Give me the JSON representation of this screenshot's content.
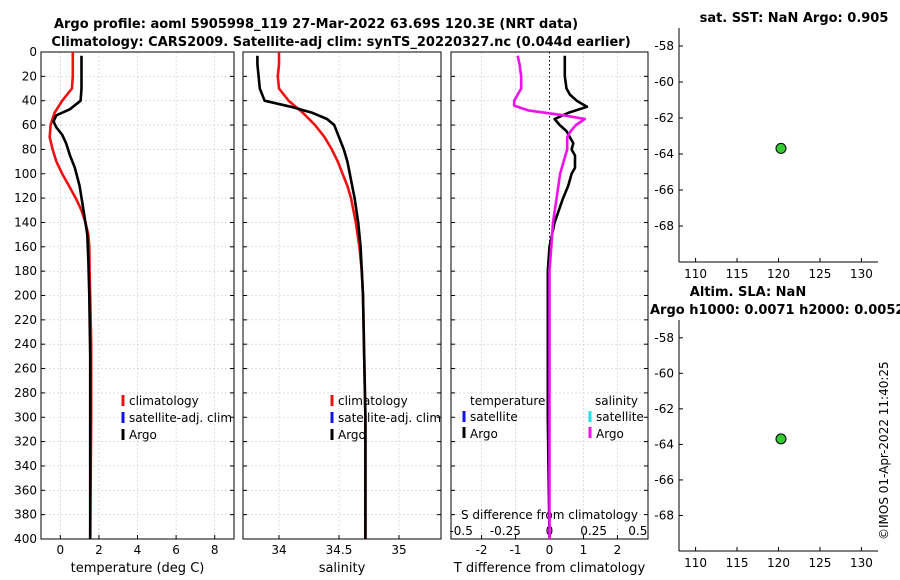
{
  "titles": {
    "line1": "Argo profile: aoml 5905998_119 27-Mar-2022 63.69S 120.3E (NRT data)",
    "line2": "Climatology: CARS2009. Satellite-adj clim: synTS_20220327.nc (0.044d earlier)",
    "sst": "sat. SST: NaN Argo: 0.905",
    "sla1": "Altim. SLA: NaN",
    "sla2": "Argo h1000: 0.0071 h2000: 0.0052"
  },
  "watermark": "©IMOS 01-Apr-2022 11:40:25",
  "colors": {
    "red": "#ee1111",
    "blue": "#1111ee",
    "black": "#000000",
    "magenta": "#ee11ee",
    "cyan": "#22ddee",
    "green": "#33cc33"
  },
  "chart_data": [
    {
      "type": "line",
      "id": "temperature",
      "xlabel": "temperature (deg C)",
      "xlim": [
        -1,
        9
      ],
      "ylim": [
        0,
        400
      ],
      "xticks": [
        0,
        2,
        4,
        6,
        8
      ],
      "yticks": [
        0,
        20,
        40,
        60,
        80,
        100,
        120,
        140,
        160,
        180,
        200,
        220,
        240,
        260,
        280,
        300,
        320,
        340,
        360,
        380,
        400
      ],
      "legend": [
        "climatology",
        "satellite-adj. clim",
        "Argo"
      ],
      "series": [
        {
          "name": "climatology",
          "color": "red",
          "depth": [
            0,
            10,
            20,
            30,
            40,
            50,
            60,
            70,
            80,
            90,
            100,
            110,
            120,
            130,
            140,
            150,
            160,
            180,
            200,
            240,
            300,
            400
          ],
          "values": [
            0.65,
            0.65,
            0.65,
            0.6,
            0.1,
            -0.3,
            -0.5,
            -0.55,
            -0.4,
            -0.2,
            0.1,
            0.45,
            0.8,
            1.1,
            1.3,
            1.45,
            1.5,
            1.52,
            1.55,
            1.6,
            1.6,
            1.55
          ]
        },
        {
          "name": "Argo",
          "color": "black",
          "depth": [
            3,
            10,
            20,
            30,
            40,
            47,
            52,
            57,
            62,
            68,
            75,
            85,
            95,
            110,
            130,
            150,
            170,
            200,
            250,
            300,
            350,
            400
          ],
          "values": [
            1.1,
            1.1,
            1.1,
            1.1,
            1.05,
            0.5,
            -0.2,
            -0.35,
            -0.2,
            0.1,
            0.3,
            0.5,
            0.75,
            1.0,
            1.2,
            1.4,
            1.45,
            1.5,
            1.55,
            1.55,
            1.55,
            1.55
          ]
        }
      ]
    },
    {
      "type": "line",
      "id": "salinity",
      "xlabel": "salinity",
      "xlim": [
        33.7,
        35.35
      ],
      "ylim": [
        0,
        400
      ],
      "xticks": [
        34,
        34.5,
        35
      ],
      "legend": [
        "climatology",
        "satellite-adj. clim",
        "Argo"
      ],
      "series": [
        {
          "name": "climatology",
          "color": "red",
          "depth": [
            0,
            10,
            20,
            30,
            40,
            50,
            60,
            70,
            80,
            90,
            100,
            110,
            120,
            140,
            160,
            180,
            200,
            250,
            300,
            400
          ],
          "values": [
            34.0,
            34.0,
            33.99,
            34.0,
            34.08,
            34.2,
            34.3,
            34.38,
            34.44,
            34.49,
            34.53,
            34.57,
            34.6,
            34.64,
            34.67,
            34.69,
            34.7,
            34.71,
            34.72,
            34.72
          ]
        },
        {
          "name": "Argo",
          "color": "black",
          "depth": [
            3,
            10,
            20,
            30,
            40,
            45,
            50,
            55,
            60,
            70,
            80,
            90,
            100,
            120,
            140,
            160,
            180,
            200,
            250,
            300,
            400
          ],
          "values": [
            33.82,
            33.82,
            33.83,
            33.84,
            33.88,
            34.1,
            34.28,
            34.4,
            34.46,
            34.5,
            34.54,
            34.57,
            34.59,
            34.63,
            34.66,
            34.68,
            34.69,
            34.7,
            34.71,
            34.72,
            34.72
          ]
        }
      ]
    },
    {
      "type": "line",
      "id": "difference",
      "xlabel": "T difference from climatology",
      "xlabel_top": "S difference from climatology",
      "xlim": [
        -2.9,
        2.9
      ],
      "ylim": [
        0,
        400
      ],
      "xticks": [
        -2,
        -1,
        0,
        1,
        2
      ],
      "xtick_labels": [
        "-2",
        "-1",
        "0",
        "1",
        "2"
      ],
      "sticks": [
        -0.5,
        -0.25,
        0,
        0.25,
        0.5
      ],
      "stick_labels": [
        "-0.5",
        "-0.25",
        "0",
        "0.25",
        "0.5"
      ],
      "legend_temperature": {
        "title": "temperature",
        "items": [
          "satellite",
          "Argo"
        ]
      },
      "legend_salinity": {
        "title": "salinity",
        "items": [
          "satellite",
          "Argo"
        ]
      },
      "series": [
        {
          "name": "T Argo - clim",
          "color": "black",
          "depth": [
            3,
            20,
            30,
            35,
            40,
            45,
            50,
            55,
            60,
            65,
            70,
            75,
            80,
            85,
            90,
            95,
            100,
            110,
            120,
            140,
            160,
            180,
            200,
            250,
            300,
            400
          ],
          "values": [
            0.45,
            0.45,
            0.5,
            0.6,
            0.8,
            1.1,
            0.55,
            0.15,
            0.3,
            0.5,
            0.6,
            0.7,
            0.65,
            0.75,
            0.75,
            0.75,
            0.65,
            0.55,
            0.4,
            0.15,
            0.0,
            -0.05,
            -0.05,
            -0.05,
            -0.05,
            0.0
          ]
        },
        {
          "name": "S Argo - clim",
          "color": "magenta",
          "depth": [
            3,
            10,
            20,
            30,
            40,
            44,
            48,
            52,
            55,
            60,
            65,
            70,
            80,
            90,
            100,
            120,
            140,
            160,
            180,
            200,
            300,
            400
          ],
          "values": [
            -0.18,
            -0.17,
            -0.16,
            -0.16,
            -0.2,
            -0.2,
            -0.12,
            0.08,
            0.2,
            0.15,
            0.12,
            0.1,
            0.1,
            0.08,
            0.06,
            0.04,
            0.02,
            0.01,
            0.0,
            0.0,
            0.0,
            0.0
          ]
        }
      ]
    },
    {
      "type": "scatter",
      "id": "sst-map",
      "xlim": [
        108,
        132
      ],
      "ylim": [
        -70,
        -57
      ],
      "xticks": [
        110,
        115,
        120,
        125,
        130
      ],
      "yticks": [
        -58,
        -60,
        -62,
        -64,
        -66,
        -68
      ],
      "points": [
        {
          "lon": 120.3,
          "lat": -63.69,
          "color": "green"
        }
      ]
    },
    {
      "type": "scatter",
      "id": "sla-map",
      "xlim": [
        108,
        132
      ],
      "ylim": [
        -70,
        -57
      ],
      "xticks": [
        110,
        115,
        120,
        125,
        130
      ],
      "yticks": [
        -58,
        -60,
        -62,
        -64,
        -66,
        -68
      ],
      "points": [
        {
          "lon": 120.3,
          "lat": -63.69,
          "color": "green"
        }
      ]
    }
  ]
}
